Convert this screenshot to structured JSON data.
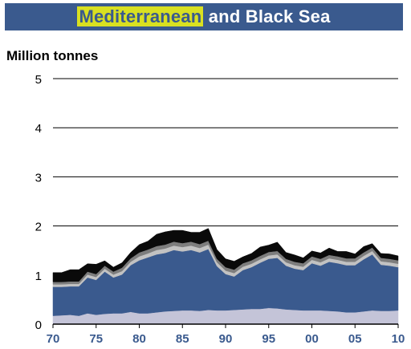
{
  "title": {
    "highlight": "Mediterranean",
    "rest": " and Black Sea"
  },
  "chart_data": {
    "type": "area",
    "title": "Mediterranean and Black Sea",
    "ylabel": "Million tonnes",
    "xlabel": "",
    "ylim": [
      0,
      5
    ],
    "xlim": [
      1970,
      2010
    ],
    "yticks": [
      "0",
      "1",
      "2",
      "3",
      "4",
      "5"
    ],
    "xticks": [
      {
        "value": 1970,
        "label": "70"
      },
      {
        "value": 1975,
        "label": "75"
      },
      {
        "value": 1980,
        "label": "80"
      },
      {
        "value": 1985,
        "label": "85"
      },
      {
        "value": 1990,
        "label": "90"
      },
      {
        "value": 1995,
        "label": "95"
      },
      {
        "value": 2000,
        "label": "00"
      },
      {
        "value": 2005,
        "label": "05"
      },
      {
        "value": 2010,
        "label": "10"
      }
    ],
    "grid": true,
    "stacked": true,
    "x": [
      1970,
      1971,
      1972,
      1973,
      1974,
      1975,
      1976,
      1977,
      1978,
      1979,
      1980,
      1981,
      1982,
      1983,
      1984,
      1985,
      1986,
      1987,
      1988,
      1989,
      1990,
      1991,
      1992,
      1993,
      1994,
      1995,
      1996,
      1997,
      1998,
      1999,
      2000,
      2001,
      2002,
      2003,
      2004,
      2005,
      2006,
      2007,
      2008,
      2009,
      2010
    ],
    "colors": [
      "#c4c4d8",
      "#3a5a8e",
      "#c2c2c2",
      "#7d7d7d",
      "#0a0a0a"
    ],
    "series": [
      {
        "values": [
          0.17,
          0.18,
          0.19,
          0.17,
          0.22,
          0.19,
          0.21,
          0.22,
          0.22,
          0.25,
          0.22,
          0.22,
          0.24,
          0.26,
          0.27,
          0.28,
          0.28,
          0.27,
          0.29,
          0.28,
          0.28,
          0.29,
          0.3,
          0.31,
          0.31,
          0.33,
          0.32,
          0.3,
          0.29,
          0.28,
          0.28,
          0.28,
          0.27,
          0.26,
          0.24,
          0.24,
          0.26,
          0.28,
          0.27,
          0.27,
          0.28
        ]
      },
      {
        "values": [
          0.59,
          0.58,
          0.58,
          0.6,
          0.73,
          0.71,
          0.86,
          0.73,
          0.79,
          0.95,
          1.08,
          1.14,
          1.18,
          1.19,
          1.24,
          1.2,
          1.23,
          1.19,
          1.24,
          0.9,
          0.74,
          0.68,
          0.8,
          0.85,
          0.94,
          1.0,
          1.03,
          0.89,
          0.84,
          0.82,
          0.96,
          0.91,
          1.0,
          0.98,
          0.96,
          0.96,
          1.06,
          1.14,
          0.94,
          0.92,
          0.88
        ]
      },
      {
        "values": [
          0.05,
          0.05,
          0.05,
          0.05,
          0.06,
          0.06,
          0.06,
          0.06,
          0.07,
          0.07,
          0.08,
          0.08,
          0.09,
          0.09,
          0.09,
          0.09,
          0.09,
          0.09,
          0.09,
          0.08,
          0.07,
          0.07,
          0.07,
          0.07,
          0.07,
          0.07,
          0.07,
          0.07,
          0.07,
          0.07,
          0.07,
          0.07,
          0.07,
          0.07,
          0.07,
          0.07,
          0.07,
          0.07,
          0.07,
          0.07,
          0.07
        ]
      },
      {
        "values": [
          0.05,
          0.05,
          0.05,
          0.05,
          0.06,
          0.06,
          0.06,
          0.06,
          0.07,
          0.07,
          0.08,
          0.08,
          0.08,
          0.08,
          0.08,
          0.08,
          0.08,
          0.08,
          0.08,
          0.07,
          0.07,
          0.07,
          0.07,
          0.07,
          0.07,
          0.07,
          0.07,
          0.07,
          0.07,
          0.07,
          0.07,
          0.07,
          0.07,
          0.07,
          0.07,
          0.07,
          0.07,
          0.07,
          0.07,
          0.07,
          0.07
        ]
      },
      {
        "values": [
          0.19,
          0.19,
          0.24,
          0.24,
          0.16,
          0.2,
          0.1,
          0.09,
          0.1,
          0.12,
          0.16,
          0.17,
          0.24,
          0.26,
          0.23,
          0.26,
          0.19,
          0.24,
          0.25,
          0.19,
          0.17,
          0.17,
          0.13,
          0.14,
          0.18,
          0.14,
          0.18,
          0.13,
          0.14,
          0.11,
          0.11,
          0.12,
          0.14,
          0.1,
          0.14,
          0.09,
          0.12,
          0.08,
          0.09,
          0.1,
          0.09
        ]
      }
    ]
  }
}
